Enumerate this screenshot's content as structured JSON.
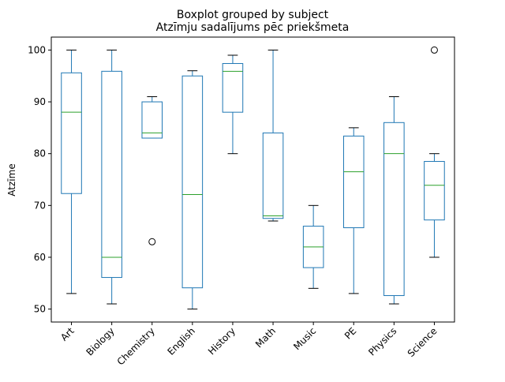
{
  "chart_data": {
    "type": "boxplot",
    "suptitle": "Boxplot grouped by subject",
    "title": "Atzīmju sadalījums pēc priekšmeta",
    "ylabel": "Atzīme",
    "categories": [
      "Art",
      "Biology",
      "Chemistry",
      "English",
      "History",
      "Math",
      "Music",
      "PE",
      "Physics",
      "Science"
    ],
    "low": [
      53,
      51,
      83,
      50,
      80,
      67,
      54,
      53,
      51,
      60
    ],
    "q1": [
      72.3,
      56.1,
      83,
      54.1,
      88,
      67.5,
      58,
      65.7,
      52.6,
      67.2
    ],
    "median": [
      88,
      60,
      84,
      72.1,
      95.9,
      68,
      62,
      76.5,
      80,
      73.9
    ],
    "q3": [
      95.6,
      95.9,
      90,
      95,
      97.4,
      84,
      66,
      83.4,
      86,
      78.5
    ],
    "high": [
      100,
      100,
      91,
      96,
      99,
      100,
      70,
      85,
      91,
      80
    ],
    "outliers": [
      [],
      [],
      [
        63
      ],
      [],
      [],
      [],
      [],
      [],
      [],
      [
        100
      ]
    ],
    "color": "#1f77b4",
    "median_color": "#2ca02c",
    "ylim": [
      47.5,
      102.5
    ],
    "yticks": [
      50,
      60,
      70,
      80,
      90,
      100
    ]
  }
}
